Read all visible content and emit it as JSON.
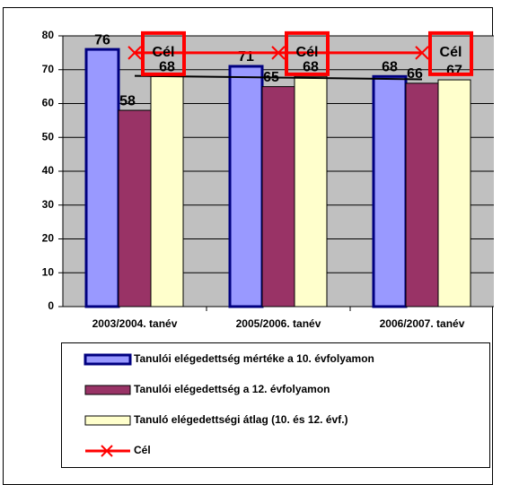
{
  "chart_data": {
    "type": "bar",
    "categories": [
      "2003/2004. tanév",
      "2005/2006. tanév",
      "2006/2007. tanév"
    ],
    "series": [
      {
        "name": "Tanulói elégedettség mértéke a 10. évfolyamon",
        "color": "#9999ff",
        "border": "#000080",
        "values": [
          76,
          71,
          68
        ]
      },
      {
        "name": "Tanulói elégedettség a 12. évfolyamon",
        "color": "#993366",
        "values": [
          58,
          65,
          66
        ]
      },
      {
        "name": "Tanuló elégedettségi átlag (10. és 12. évf.)",
        "color": "#ffffcc",
        "values": [
          68,
          68,
          67
        ],
        "trendline": true
      },
      {
        "name": "Cél",
        "color": "#ff0000",
        "type": "line",
        "values": [
          75,
          75,
          75
        ]
      }
    ],
    "ylim": [
      0,
      80
    ],
    "yticks": [
      0,
      10,
      20,
      30,
      40,
      50,
      60,
      70,
      80
    ],
    "grid": true
  }
}
